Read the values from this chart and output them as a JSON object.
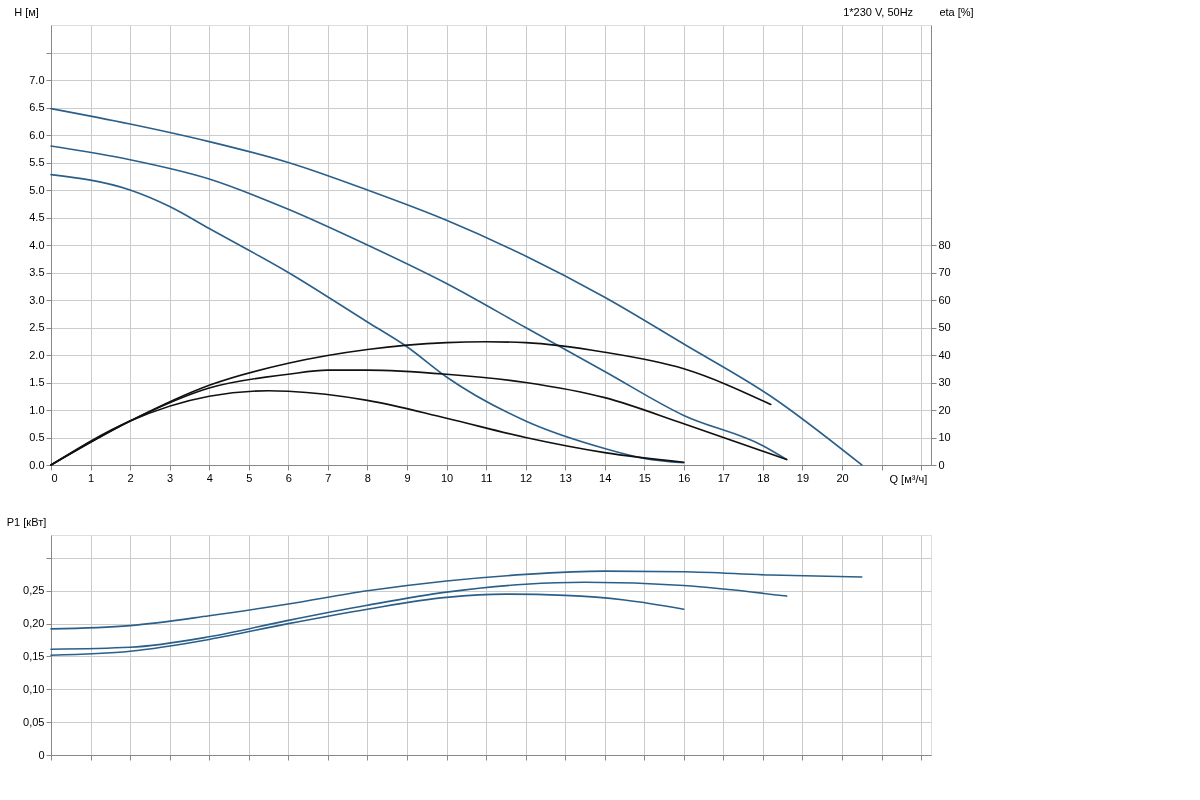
{
  "chart_data": [
    {
      "type": "line",
      "title": "1*230 V, 50Hz",
      "xlabel": "Q [м³/ч]",
      "ylabel": "H [м]",
      "y2label": "eta [%]",
      "xlim": [
        0,
        22.25
      ],
      "xticks": [
        0,
        1,
        2,
        3,
        4,
        5,
        6,
        7,
        8,
        9,
        10,
        11,
        12,
        13,
        14,
        15,
        16,
        17,
        18,
        19,
        20,
        {
          "value": 21,
          "label": null
        },
        {
          "value": 22,
          "label": null
        }
      ],
      "ylim": [
        0,
        8
      ],
      "yticks": [
        {
          "value": 0,
          "label": "0.0"
        },
        {
          "value": 0.5,
          "label": "0.5"
        },
        {
          "value": 1,
          "label": "1.0"
        },
        {
          "value": 1.5,
          "label": "1.5"
        },
        {
          "value": 2,
          "label": "2.0"
        },
        {
          "value": 2.5,
          "label": "2.5"
        },
        {
          "value": 3,
          "label": "3.0"
        },
        {
          "value": 3.5,
          "label": "3.5"
        },
        {
          "value": 4,
          "label": "4.0"
        },
        {
          "value": 4.5,
          "label": "4.5"
        },
        {
          "value": 5,
          "label": "5.0"
        },
        {
          "value": 5.5,
          "label": "5.5"
        },
        {
          "value": 6,
          "label": "6.0"
        },
        {
          "value": 6.5,
          "label": "6.5"
        },
        {
          "value": 7,
          "label": "7.0"
        },
        {
          "value": 7.5,
          "label": null
        }
      ],
      "y2lim": [
        0,
        160
      ],
      "y2ticks": [
        0,
        10,
        20,
        30,
        40,
        50,
        60,
        70,
        80
      ],
      "grid": true,
      "series": [
        {
          "color": "#2a5f8a",
          "x": [
            0,
            2,
            4,
            6,
            8,
            10,
            12,
            14,
            16,
            18.2,
            20.5
          ],
          "values": [
            6.48,
            6.2,
            5.88,
            5.5,
            5.0,
            4.45,
            3.8,
            3.05,
            2.2,
            1.25,
            0
          ]
        },
        {
          "color": "#2a5f8a",
          "x": [
            0,
            2,
            4,
            6,
            8,
            10,
            12,
            14,
            16,
            18,
            18.6
          ],
          "values": [
            5.8,
            5.55,
            5.2,
            4.65,
            4.0,
            3.3,
            2.5,
            1.7,
            0.9,
            0.35,
            0.1
          ]
        },
        {
          "color": "#2a5f8a",
          "x": [
            0,
            2,
            3,
            4,
            6,
            8,
            9,
            10,
            12,
            14,
            15,
            16
          ],
          "values": [
            5.28,
            5.0,
            4.7,
            4.3,
            3.5,
            2.6,
            2.15,
            1.6,
            0.8,
            0.3,
            0.12,
            0.04
          ]
        },
        {
          "color": "#111111",
          "axis": "y2",
          "x": [
            0,
            2,
            4,
            6,
            8,
            10,
            11,
            12,
            14,
            16,
            18.2
          ],
          "values": [
            0,
            16,
            29,
            37,
            42,
            44.5,
            44.8,
            44.5,
            41,
            35,
            22
          ]
        },
        {
          "color": "#111111",
          "axis": "y2",
          "x": [
            0,
            2,
            4,
            6,
            7,
            8,
            10,
            12,
            14,
            16,
            18.6
          ],
          "values": [
            0,
            16,
            28,
            33,
            34.5,
            34.5,
            33,
            30,
            24.5,
            15,
            2
          ]
        },
        {
          "color": "#111111",
          "axis": "y2",
          "x": [
            0,
            2,
            4,
            5.5,
            6,
            8,
            10,
            12,
            14,
            16
          ],
          "values": [
            0,
            16,
            25,
            27,
            26.8,
            23.5,
            17,
            10,
            4.5,
            1
          ]
        }
      ]
    },
    {
      "type": "line",
      "ylabel": "P1 [кВт]",
      "tick_labels": "y",
      "xlim": [
        0,
        22.25
      ],
      "xticks": [
        0,
        1,
        2,
        3,
        4,
        5,
        6,
        7,
        8,
        9,
        10,
        11,
        12,
        13,
        14,
        15,
        16,
        17,
        18,
        19,
        20,
        21,
        22
      ],
      "ylim": [
        0,
        0.335
      ],
      "yticks": [
        0,
        {
          "value": 0.05,
          "label": "0,05"
        },
        {
          "value": 0.1,
          "label": "0,10"
        },
        {
          "value": 0.15,
          "label": "0,15"
        },
        {
          "value": 0.2,
          "label": "0,20"
        },
        {
          "value": 0.25,
          "label": "0,25"
        },
        {
          "value": 0.3,
          "label": null
        }
      ],
      "grid": true,
      "series": [
        {
          "color": "#2a5f8a",
          "x": [
            0,
            2,
            4,
            6,
            8,
            10,
            12,
            14,
            16,
            18.2,
            20.5
          ],
          "values": [
            0.192,
            0.197,
            0.212,
            0.23,
            0.25,
            0.265,
            0.275,
            0.28,
            0.279,
            0.274,
            0.271
          ]
        },
        {
          "color": "#2a5f8a",
          "x": [
            0,
            2,
            4,
            6,
            8,
            10,
            12,
            13.5,
            16,
            18.6
          ],
          "values": [
            0.161,
            0.164,
            0.18,
            0.205,
            0.228,
            0.248,
            0.26,
            0.263,
            0.258,
            0.242
          ]
        },
        {
          "color": "#2a5f8a",
          "x": [
            0,
            2,
            4,
            6,
            8,
            10,
            11.5,
            13,
            14.5,
            16
          ],
          "values": [
            0.152,
            0.158,
            0.176,
            0.2,
            0.222,
            0.24,
            0.245,
            0.243,
            0.236,
            0.222
          ]
        }
      ]
    }
  ]
}
